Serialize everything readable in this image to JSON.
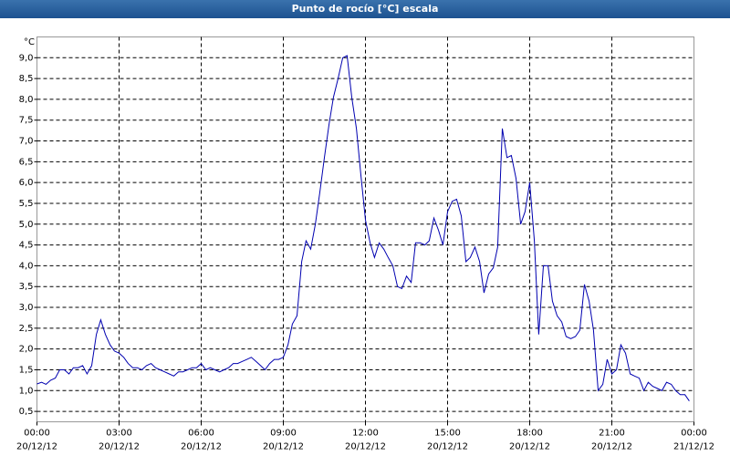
{
  "chart_data": {
    "type": "line",
    "title": "Punto de rocío [°C] escala",
    "y_unit": "°C",
    "x": [
      0,
      0.17,
      0.33,
      0.5,
      0.67,
      0.83,
      1,
      1.17,
      1.33,
      1.5,
      1.67,
      1.83,
      2,
      2.17,
      2.33,
      2.5,
      2.67,
      2.83,
      3,
      3.17,
      3.33,
      3.5,
      3.67,
      3.83,
      4,
      4.17,
      4.33,
      4.5,
      4.67,
      4.83,
      5,
      5.17,
      5.33,
      5.5,
      5.67,
      5.83,
      6,
      6.17,
      6.33,
      6.5,
      6.67,
      6.83,
      7,
      7.17,
      7.33,
      7.5,
      7.67,
      7.83,
      8,
      8.17,
      8.33,
      8.5,
      8.67,
      8.83,
      9,
      9.17,
      9.33,
      9.5,
      9.67,
      9.83,
      10,
      10.17,
      10.33,
      10.5,
      10.67,
      10.83,
      11,
      11.17,
      11.33,
      11.5,
      11.67,
      11.83,
      12,
      12.17,
      12.33,
      12.5,
      12.67,
      12.83,
      13,
      13.17,
      13.33,
      13.5,
      13.67,
      13.83,
      14,
      14.17,
      14.33,
      14.5,
      14.67,
      14.83,
      15,
      15.17,
      15.33,
      15.5,
      15.67,
      15.83,
      16,
      16.17,
      16.33,
      16.5,
      16.67,
      16.83,
      17,
      17.17,
      17.33,
      17.5,
      17.67,
      17.83,
      18,
      18.17,
      18.33,
      18.5,
      18.67,
      18.83,
      19,
      19.17,
      19.33,
      19.5,
      19.67,
      19.83,
      20,
      20.17,
      20.33,
      20.5,
      20.67,
      20.83,
      21,
      21.17,
      21.33,
      21.5,
      21.67,
      21.83,
      22,
      22.17,
      22.33,
      22.5,
      22.67,
      22.83,
      23,
      23.17,
      23.33,
      23.5,
      23.67,
      23.83
    ],
    "series": [
      {
        "name": "Punto de rocío",
        "color": "#0000b0",
        "values": [
          1.16,
          1.2,
          1.15,
          1.25,
          1.3,
          1.5,
          1.5,
          1.4,
          1.55,
          1.55,
          1.6,
          1.4,
          1.6,
          2.35,
          2.7,
          2.35,
          2.1,
          1.95,
          1.9,
          1.8,
          1.65,
          1.55,
          1.55,
          1.5,
          1.6,
          1.65,
          1.55,
          1.5,
          1.45,
          1.4,
          1.35,
          1.45,
          1.45,
          1.5,
          1.55,
          1.55,
          1.65,
          1.5,
          1.55,
          1.5,
          1.45,
          1.5,
          1.55,
          1.65,
          1.65,
          1.7,
          1.75,
          1.8,
          1.7,
          1.6,
          1.5,
          1.65,
          1.75,
          1.75,
          1.8,
          2.1,
          2.6,
          2.8,
          4.1,
          4.6,
          4.4,
          5.0,
          5.75,
          6.6,
          7.4,
          8.05,
          8.5,
          9.0,
          9.05,
          8.05,
          7.3,
          6.2,
          5.1,
          4.55,
          4.2,
          4.55,
          4.4,
          4.2,
          4.0,
          3.5,
          3.45,
          3.75,
          3.6,
          4.55,
          4.55,
          4.5,
          4.6,
          5.15,
          4.85,
          4.5,
          5.3,
          5.55,
          5.6,
          5.2,
          4.1,
          4.2,
          4.45,
          4.1,
          3.35,
          3.8,
          3.95,
          4.45,
          7.3,
          6.6,
          6.65,
          6.1,
          5.0,
          5.3,
          6.0,
          4.6,
          2.35,
          4.0,
          4.0,
          3.15,
          2.8,
          2.65,
          2.3,
          2.25,
          2.3,
          2.45,
          3.55,
          3.15,
          2.45,
          1.0,
          1.15,
          1.75,
          1.4,
          1.5,
          2.1,
          1.9,
          1.4,
          1.35,
          1.3,
          1.0,
          1.2,
          1.1,
          1.05,
          1.0,
          1.2,
          1.15,
          1.0,
          0.9,
          0.9,
          0.75
        ]
      }
    ],
    "xlim": [
      0,
      24
    ],
    "xticks": [
      {
        "value": 0,
        "label": "00:00"
      },
      {
        "value": 3,
        "label": "03:00"
      },
      {
        "value": 6,
        "label": "06:00"
      },
      {
        "value": 9,
        "label": "09:00"
      },
      {
        "value": 12,
        "label": "12:00"
      },
      {
        "value": 15,
        "label": "15:00"
      },
      {
        "value": 18,
        "label": "18:00"
      },
      {
        "value": 21,
        "label": "21:00"
      },
      {
        "value": 24,
        "label": "00:00"
      }
    ],
    "xtick_dates": [
      "20/12/12",
      "20/12/12",
      "20/12/12",
      "20/12/12",
      "20/12/12",
      "20/12/12",
      "20/12/12",
      "20/12/12",
      "21/12/12"
    ],
    "ylim": [
      0.25,
      9.5
    ],
    "yticks": [
      {
        "value": 0.5,
        "label": "0,5"
      },
      {
        "value": 1,
        "label": "1,0"
      },
      {
        "value": 1.5,
        "label": "1,5"
      },
      {
        "value": 2,
        "label": "2,0"
      },
      {
        "value": 2.5,
        "label": "2,5"
      },
      {
        "value": 3,
        "label": "3,0"
      },
      {
        "value": 3.5,
        "label": "3,5"
      },
      {
        "value": 4,
        "label": "4,0"
      },
      {
        "value": 4.5,
        "label": "4,5"
      },
      {
        "value": 5,
        "label": "5,0"
      },
      {
        "value": 5.5,
        "label": "5,5"
      },
      {
        "value": 6,
        "label": "6,0"
      },
      {
        "value": 6.5,
        "label": "6,5"
      },
      {
        "value": 7,
        "label": "7,0"
      },
      {
        "value": 7.5,
        "label": "7,5"
      },
      {
        "value": 8,
        "label": "8,0"
      },
      {
        "value": 8.5,
        "label": "8,5"
      },
      {
        "value": 9,
        "label": "9,0"
      }
    ],
    "grid": true
  }
}
